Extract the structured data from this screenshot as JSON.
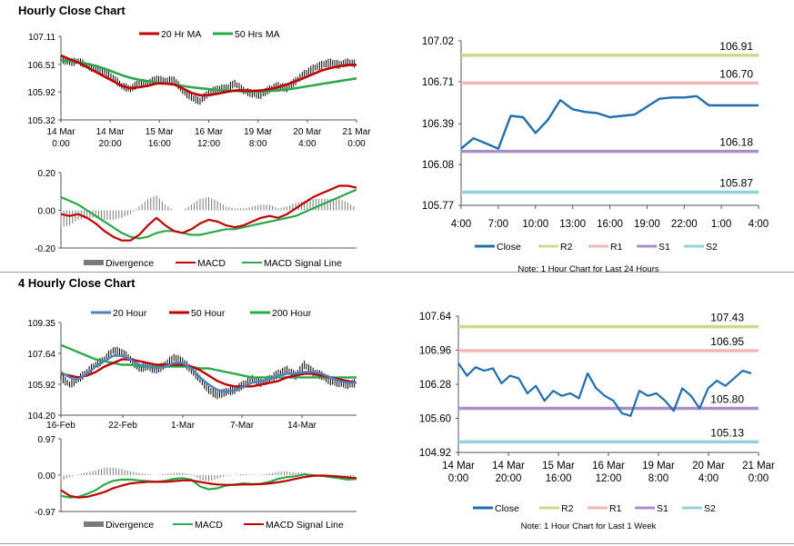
{
  "titles": {
    "hourly": "Hourly Close Chart",
    "four_hourly": "4 Hourly Close Chart"
  },
  "colors": {
    "close": "#1f6fb0",
    "ma20_hourly": "#c00000",
    "ma50_hourly": "#2aa84a",
    "r2": "#c5dc8c",
    "r1": "#f0b8b8",
    "s1": "#a98fc7",
    "s2": "#92d2d8",
    "divergence": "#7a7a7a",
    "four_20": "#4f81bd",
    "four_50": "#c00000",
    "four_200": "#2aa84a"
  },
  "chart_data": [
    {
      "id": "hourly-price",
      "type": "line",
      "title": "Hourly Close Chart",
      "legend": [
        "20 Hr MA",
        "50 Hrs MA"
      ],
      "y_ticks": [
        "107.11",
        "106.51",
        "105.92",
        "105.32"
      ],
      "ylim": [
        105.32,
        107.11
      ],
      "x_ticks": [
        [
          "14 Mar",
          "0:00"
        ],
        [
          "14 Mar",
          "20:00"
        ],
        [
          "15 Mar",
          "16:00"
        ],
        [
          "16 Mar",
          "12:00"
        ],
        [
          "19 Mar",
          "8:00"
        ],
        [
          "20 Mar",
          "4:00"
        ],
        [
          "21 Mar",
          "0:00"
        ]
      ],
      "series": [
        {
          "name": "Close",
          "values": [
            106.62,
            106.55,
            106.58,
            106.48,
            106.4,
            106.35,
            106.22,
            106.05,
            105.98,
            106.12,
            106.1,
            106.2,
            106.15,
            106.18,
            105.95,
            105.8,
            105.72,
            105.9,
            105.98,
            106.0,
            106.1,
            105.95,
            105.88,
            105.85,
            105.98,
            106.05,
            106.0,
            106.15,
            106.3,
            106.42,
            106.5,
            106.55,
            106.5,
            106.55,
            106.52
          ]
        },
        {
          "name": "20 Hr MA",
          "values": [
            106.7,
            106.62,
            106.55,
            106.45,
            106.35,
            106.25,
            106.15,
            106.05,
            106.0,
            106.02,
            106.05,
            106.1,
            106.1,
            106.08,
            106.0,
            105.9,
            105.85,
            105.85,
            105.88,
            105.92,
            105.95,
            105.95,
            105.94,
            105.95,
            105.98,
            106.02,
            106.08,
            106.15,
            106.22,
            106.3,
            106.38,
            106.43,
            106.47,
            106.5,
            106.5
          ]
        },
        {
          "name": "50 Hrs MA",
          "values": [
            106.6,
            106.58,
            106.55,
            106.52,
            106.48,
            106.42,
            106.35,
            106.28,
            106.22,
            106.18,
            106.15,
            106.12,
            106.1,
            106.08,
            106.05,
            106.02,
            106.0,
            105.98,
            105.96,
            105.95,
            105.94,
            105.93,
            105.93,
            105.93,
            105.94,
            105.95,
            105.97,
            106.0,
            106.03,
            106.06,
            106.09,
            106.12,
            106.15,
            106.18,
            106.21
          ]
        }
      ]
    },
    {
      "id": "hourly-macd",
      "type": "line",
      "legend": [
        "Divergence",
        "MACD",
        "MACD Signal Line"
      ],
      "y_ticks": [
        "0.20",
        "0.00",
        "-0.20"
      ],
      "ylim": [
        -0.2,
        0.2
      ],
      "series": [
        {
          "name": "MACD",
          "values": [
            -0.02,
            -0.03,
            -0.02,
            -0.04,
            -0.07,
            -0.11,
            -0.14,
            -0.16,
            -0.16,
            -0.13,
            -0.08,
            -0.04,
            -0.08,
            -0.11,
            -0.12,
            -0.1,
            -0.07,
            -0.05,
            -0.06,
            -0.08,
            -0.09,
            -0.08,
            -0.06,
            -0.04,
            -0.03,
            -0.04,
            -0.02,
            0.01,
            0.04,
            0.07,
            0.09,
            0.11,
            0.13,
            0.13,
            0.12
          ]
        },
        {
          "name": "MACD Signal Line",
          "values": [
            0.07,
            0.05,
            0.03,
            0.0,
            -0.03,
            -0.06,
            -0.09,
            -0.12,
            -0.14,
            -0.15,
            -0.14,
            -0.12,
            -0.11,
            -0.11,
            -0.12,
            -0.13,
            -0.13,
            -0.12,
            -0.11,
            -0.1,
            -0.1,
            -0.09,
            -0.08,
            -0.07,
            -0.06,
            -0.05,
            -0.04,
            -0.03,
            -0.01,
            0.01,
            0.03,
            0.05,
            0.07,
            0.09,
            0.11
          ]
        }
      ]
    },
    {
      "id": "hourly-close-24h",
      "type": "line",
      "y_ticks": [
        "107.02",
        "106.71",
        "106.39",
        "106.08",
        "105.77"
      ],
      "ylim": [
        105.77,
        107.02
      ],
      "x_ticks": [
        "4:00",
        "7:00",
        "10:00",
        "13:00",
        "16:00",
        "19:00",
        "22:00",
        "1:00",
        "4:00"
      ],
      "x_range": [
        4,
        28
      ],
      "series": [
        {
          "name": "Close",
          "x": [
            4,
            5,
            6,
            7,
            8,
            9,
            10,
            11,
            12,
            13,
            14,
            15,
            16,
            17,
            18,
            19,
            20,
            21,
            22,
            23,
            24,
            25,
            26,
            27,
            28
          ],
          "values": [
            106.2,
            106.28,
            106.24,
            106.2,
            106.45,
            106.44,
            106.32,
            106.42,
            106.57,
            106.5,
            106.48,
            106.47,
            106.44,
            106.45,
            106.46,
            106.52,
            106.58,
            106.59,
            106.59,
            106.6,
            106.53,
            106.53,
            106.53,
            106.53,
            106.53
          ]
        }
      ],
      "levels": [
        {
          "name": "R2",
          "value": 106.91,
          "label": "106.91"
        },
        {
          "name": "R1",
          "value": 106.7,
          "label": "106.70"
        },
        {
          "name": "S1",
          "value": 106.18,
          "label": "106.18"
        },
        {
          "name": "S2",
          "value": 105.87,
          "label": "105.87"
        }
      ],
      "legend": [
        "Close",
        "R2",
        "R1",
        "S1",
        "S2"
      ],
      "note": "Note: 1 Hour Chart for Last 24 Hours"
    },
    {
      "id": "four-hourly-price",
      "type": "line",
      "title": "4 Hourly Close Chart",
      "legend": [
        "20 Hour",
        "50 Hour",
        "200 Hour"
      ],
      "y_ticks": [
        "109.35",
        "107.64",
        "105.92",
        "104.20"
      ],
      "ylim": [
        104.2,
        109.35
      ],
      "x_ticks": [
        "16-Feb",
        "22-Feb",
        "1-Mar",
        "7-Mar",
        "14-Mar"
      ],
      "series": [
        {
          "name": "Close",
          "values": [
            106.3,
            105.9,
            106.2,
            106.6,
            107.0,
            107.3,
            107.8,
            107.7,
            107.3,
            106.8,
            106.9,
            106.7,
            107.0,
            107.4,
            107.2,
            106.7,
            106.2,
            105.6,
            105.3,
            105.5,
            105.6,
            105.9,
            106.2,
            106.0,
            106.2,
            106.5,
            106.7,
            106.4,
            107.0,
            106.6,
            106.4,
            106.1,
            106.0,
            105.9,
            106.0
          ]
        },
        {
          "name": "20 Hour",
          "values": [
            106.6,
            106.3,
            106.2,
            106.5,
            106.9,
            107.2,
            107.5,
            107.5,
            107.3,
            107.0,
            106.9,
            106.8,
            106.9,
            107.1,
            107.1,
            106.8,
            106.3,
            105.9,
            105.6,
            105.5,
            105.6,
            105.8,
            106.0,
            106.1,
            106.2,
            106.4,
            106.5,
            106.5,
            106.6,
            106.6,
            106.5,
            106.3,
            106.1,
            106.0,
            106.0
          ]
        },
        {
          "name": "50 Hour",
          "values": [
            106.5,
            106.4,
            106.3,
            106.4,
            106.6,
            106.9,
            107.1,
            107.3,
            107.3,
            107.2,
            107.1,
            107.0,
            107.0,
            107.0,
            107.0,
            106.9,
            106.7,
            106.4,
            106.1,
            105.9,
            105.8,
            105.8,
            105.8,
            105.9,
            106.0,
            106.1,
            106.3,
            106.4,
            106.5,
            106.5,
            106.4,
            106.3,
            106.2,
            106.1,
            106.0
          ]
        },
        {
          "name": "200 Hour",
          "values": [
            108.1,
            107.9,
            107.7,
            107.5,
            107.3,
            107.2,
            107.1,
            107.0,
            107.0,
            106.9,
            106.9,
            106.9,
            106.9,
            106.9,
            106.9,
            106.9,
            106.8,
            106.8,
            106.7,
            106.6,
            106.5,
            106.4,
            106.3,
            106.3,
            106.3,
            106.3,
            106.3,
            106.3,
            106.3,
            106.3,
            106.3,
            106.3,
            106.3,
            106.3,
            106.3
          ]
        }
      ]
    },
    {
      "id": "four-hourly-macd",
      "type": "line",
      "legend": [
        "Divergence",
        "MACD",
        "MACD Signal Line"
      ],
      "y_ticks": [
        "0.97",
        "0.00",
        "-0.97"
      ],
      "ylim": [
        -0.97,
        0.97
      ],
      "series": [
        {
          "name": "MACD",
          "values": [
            -0.55,
            -0.6,
            -0.58,
            -0.5,
            -0.4,
            -0.25,
            -0.15,
            -0.12,
            -0.12,
            -0.14,
            -0.16,
            -0.18,
            -0.15,
            -0.1,
            -0.08,
            -0.12,
            -0.3,
            -0.38,
            -0.35,
            -0.28,
            -0.25,
            -0.22,
            -0.24,
            -0.23,
            -0.18,
            -0.1,
            -0.05,
            -0.03,
            0.02,
            0.0,
            -0.02,
            -0.05,
            -0.08,
            -0.12,
            -0.1
          ]
        },
        {
          "name": "MACD Signal Line",
          "values": [
            -0.4,
            -0.55,
            -0.6,
            -0.58,
            -0.52,
            -0.45,
            -0.35,
            -0.28,
            -0.22,
            -0.2,
            -0.18,
            -0.18,
            -0.18,
            -0.16,
            -0.14,
            -0.14,
            -0.18,
            -0.22,
            -0.25,
            -0.26,
            -0.26,
            -0.25,
            -0.25,
            -0.24,
            -0.22,
            -0.19,
            -0.15,
            -0.1,
            -0.05,
            -0.02,
            -0.01,
            -0.02,
            -0.04,
            -0.06,
            -0.08
          ]
        }
      ]
    },
    {
      "id": "hourly-close-week",
      "type": "line",
      "y_ticks": [
        "107.64",
        "106.96",
        "106.28",
        "105.60",
        "104.92"
      ],
      "ylim": [
        104.92,
        107.64
      ],
      "x_ticks": [
        [
          "14 Mar",
          "0:00"
        ],
        [
          "14 Mar",
          "20:00"
        ],
        [
          "15 Mar",
          "16:00"
        ],
        [
          "16 Mar",
          "12:00"
        ],
        [
          "19 Mar",
          "8:00"
        ],
        [
          "20 Mar",
          "4:00"
        ],
        [
          "21 Mar",
          "0:00"
        ]
      ],
      "series": [
        {
          "name": "Close",
          "values": [
            106.7,
            106.45,
            106.62,
            106.55,
            106.6,
            106.3,
            106.45,
            106.4,
            106.1,
            106.25,
            105.95,
            106.15,
            106.05,
            106.1,
            106.0,
            106.5,
            106.2,
            106.05,
            105.95,
            105.7,
            105.65,
            106.15,
            106.05,
            106.1,
            105.95,
            105.75,
            106.2,
            106.05,
            105.8,
            106.2,
            106.35,
            106.25,
            106.4,
            106.55,
            106.5
          ]
        }
      ],
      "levels": [
        {
          "name": "R2",
          "value": 107.43,
          "label": "107.43"
        },
        {
          "name": "R1",
          "value": 106.95,
          "label": "106.95"
        },
        {
          "name": "S1",
          "value": 105.8,
          "label": "105.80"
        },
        {
          "name": "S2",
          "value": 105.13,
          "label": "105.13"
        }
      ],
      "legend": [
        "Close",
        "R2",
        "R1",
        "S1",
        "S2"
      ],
      "note": "Note: 1 Hour Chart for Last 1 Week"
    }
  ]
}
